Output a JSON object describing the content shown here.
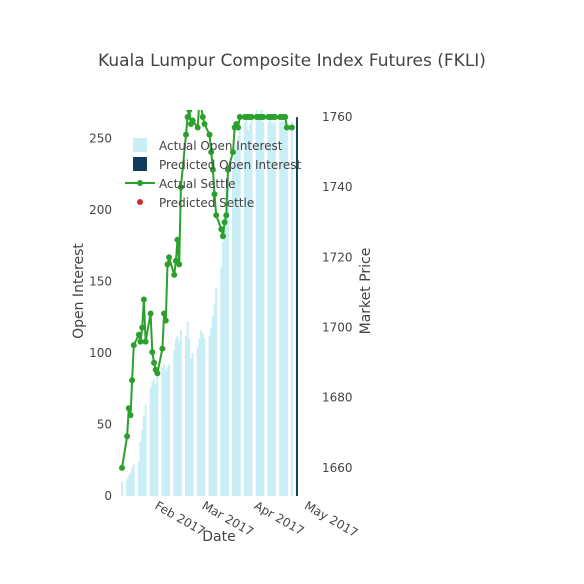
{
  "chart_data": {
    "type": "bar",
    "title": "Kuala Lumpur Composite Index Futures (FKLI)",
    "xlabel": "Date",
    "ylabel": "Open Interest",
    "y2label": "Market Price",
    "x_ticks": [
      "Feb 2017",
      "Mar 2017",
      "Apr 2017",
      "May 2017"
    ],
    "y_ticks": [
      0,
      50,
      100,
      150,
      200,
      250
    ],
    "y2_ticks": [
      1660,
      1680,
      1700,
      1720,
      1740,
      1760
    ],
    "ylim": [
      0,
      270
    ],
    "y2lim": [
      1652,
      1762
    ],
    "legend": {
      "placement": "top-left",
      "entries": [
        "Actual Open Interest",
        "Predicted Open Interest",
        "Actual Settle",
        "Predicted Settle"
      ]
    },
    "colors": {
      "actual_open_interest": "#c9eef6",
      "predicted_open_interest": "#123d5c",
      "actual_settle": "#2ca02c",
      "predicted_settle": "#d62728"
    },
    "series": [
      {
        "name": "Actual Open Interest",
        "type": "bar",
        "axis": "left",
        "x": [
          "2017-01-13",
          "2017-01-16",
          "2017-01-17",
          "2017-01-18",
          "2017-01-19",
          "2017-01-20",
          "2017-01-23",
          "2017-01-24",
          "2017-01-25",
          "2017-01-26",
          "2017-01-27",
          "2017-01-30",
          "2017-01-31",
          "2017-02-01",
          "2017-02-02",
          "2017-02-03",
          "2017-02-06",
          "2017-02-07",
          "2017-02-08",
          "2017-02-09",
          "2017-02-10",
          "2017-02-13",
          "2017-02-14",
          "2017-02-15",
          "2017-02-16",
          "2017-02-17",
          "2017-02-20",
          "2017-02-21",
          "2017-02-22",
          "2017-02-23",
          "2017-02-24",
          "2017-02-27",
          "2017-02-28",
          "2017-03-01",
          "2017-03-02",
          "2017-03-03",
          "2017-03-06",
          "2017-03-07",
          "2017-03-08",
          "2017-03-09",
          "2017-03-10",
          "2017-03-13",
          "2017-03-14",
          "2017-03-15",
          "2017-03-16",
          "2017-03-17",
          "2017-03-20",
          "2017-03-21",
          "2017-03-22",
          "2017-03-23",
          "2017-03-24",
          "2017-03-27",
          "2017-03-28",
          "2017-03-29",
          "2017-03-30",
          "2017-03-31",
          "2017-04-03",
          "2017-04-04",
          "2017-04-05",
          "2017-04-06",
          "2017-04-07",
          "2017-04-10",
          "2017-04-11",
          "2017-04-12",
          "2017-04-13",
          "2017-04-14",
          "2017-04-17",
          "2017-04-18",
          "2017-04-19",
          "2017-04-20",
          "2017-04-21",
          "2017-04-24"
        ],
        "values": [
          10,
          12,
          14,
          16,
          20,
          22,
          24,
          38,
          46,
          56,
          64,
          76,
          80,
          82,
          78,
          86,
          90,
          92,
          88,
          90,
          92,
          102,
          110,
          112,
          108,
          116,
          112,
          122,
          110,
          96,
          100,
          104,
          110,
          116,
          114,
          110,
          112,
          118,
          126,
          134,
          146,
          160,
          178,
          196,
          215,
          225,
          232,
          238,
          246,
          252,
          258,
          262,
          265,
          256,
          260,
          268,
          270,
          266,
          268,
          270,
          262,
          262,
          264,
          262,
          260,
          262,
          262,
          262,
          262,
          262,
          262,
          262
        ]
      },
      {
        "name": "Predicted Open Interest",
        "type": "bar",
        "axis": "left",
        "x": [
          "2017-04-27"
        ],
        "values": [
          265
        ]
      },
      {
        "name": "Actual Settle",
        "type": "line",
        "axis": "right",
        "x": [
          "2017-01-13",
          "2017-01-16",
          "2017-01-17",
          "2017-01-18",
          "2017-01-19",
          "2017-01-20",
          "2017-01-23",
          "2017-01-24",
          "2017-01-25",
          "2017-01-26",
          "2017-01-27",
          "2017-01-30",
          "2017-01-31",
          "2017-02-01",
          "2017-02-02",
          "2017-02-03",
          "2017-02-06",
          "2017-02-07",
          "2017-02-08",
          "2017-02-09",
          "2017-02-10",
          "2017-02-13",
          "2017-02-14",
          "2017-02-15",
          "2017-02-16",
          "2017-02-17",
          "2017-02-20",
          "2017-02-21",
          "2017-02-22",
          "2017-02-23",
          "2017-02-24",
          "2017-02-27",
          "2017-02-28",
          "2017-03-01",
          "2017-03-02",
          "2017-03-03",
          "2017-03-06",
          "2017-03-07",
          "2017-03-08",
          "2017-03-09",
          "2017-03-10",
          "2017-03-13",
          "2017-03-14",
          "2017-03-15",
          "2017-03-16",
          "2017-03-17",
          "2017-03-20",
          "2017-03-21",
          "2017-03-22",
          "2017-03-23",
          "2017-03-24",
          "2017-03-27",
          "2017-03-28",
          "2017-03-29",
          "2017-03-30",
          "2017-03-31",
          "2017-04-03",
          "2017-04-04",
          "2017-04-05",
          "2017-04-06",
          "2017-04-07",
          "2017-04-10",
          "2017-04-11",
          "2017-04-12",
          "2017-04-13",
          "2017-04-14",
          "2017-04-17",
          "2017-04-18",
          "2017-04-19",
          "2017-04-20",
          "2017-04-21",
          "2017-04-24"
        ],
        "values": [
          1660,
          1669,
          1677,
          1675,
          1685,
          1695,
          1698,
          1696,
          1700,
          1708,
          1696,
          1704,
          1693,
          1690,
          1688,
          1687,
          1694,
          1704,
          1702,
          1718,
          1720,
          1715,
          1719,
          1725,
          1718,
          1740,
          1755,
          1760,
          1762,
          1758,
          1759,
          1757,
          1765,
          1763,
          1760,
          1758,
          1755,
          1750,
          1745,
          1738,
          1732,
          1728,
          1726,
          1730,
          1732,
          1745,
          1750,
          1757,
          1758,
          1757,
          1760,
          1760,
          1760,
          1760,
          1760,
          1760,
          1760,
          1760,
          1760,
          1760,
          1760,
          1760,
          1760,
          1760,
          1760,
          1760,
          1760,
          1760,
          1760,
          1760,
          1757,
          1757
        ]
      },
      {
        "name": "Predicted Settle",
        "type": "scatter",
        "axis": "right",
        "x": [],
        "values": []
      }
    ]
  }
}
